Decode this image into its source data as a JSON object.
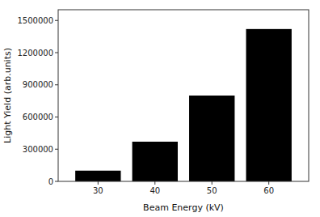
{
  "chart_data": {
    "type": "bar",
    "xlabel": "Beam Energy (kV)",
    "ylabel": "Light Yield (arb.units)",
    "x": [
      30,
      40,
      50,
      60
    ],
    "values": [
      100000,
      370000,
      800000,
      1420000
    ],
    "color": "#000000",
    "xlim": [
      23,
      67
    ],
    "xticks": [
      30,
      40,
      50,
      60
    ],
    "ylim": [
      0,
      1600000
    ],
    "yticks": [
      0,
      300000,
      600000,
      900000,
      1200000,
      1500000
    ],
    "grid": false
  }
}
